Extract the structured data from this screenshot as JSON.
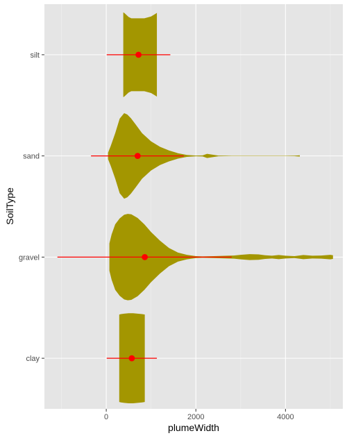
{
  "chart_data": {
    "type": "violin",
    "xlabel": "plumeWidth",
    "ylabel": "SoilType",
    "xlim": [
      -1380,
      5280
    ],
    "x_ticks": [
      0,
      2000,
      4000
    ],
    "x_tick_labels": [
      "0",
      "2000",
      "4000"
    ],
    "categories": [
      "clay",
      "gravel",
      "sand",
      "silt"
    ],
    "colors": {
      "panel": "#e5e5e5",
      "grid_major": "#ffffff",
      "grid_minor": "#f0f0f0",
      "violin_fill": "#a39600",
      "summary": "#ff0000"
    },
    "series": [
      {
        "category": "clay",
        "summary": {
          "mean": 570,
          "low": 10,
          "high": 1130
        },
        "density": [
          [
            290,
            0.96
          ],
          [
            330,
            0.97
          ],
          [
            400,
            0.98
          ],
          [
            500,
            0.99
          ],
          [
            600,
            0.99
          ],
          [
            700,
            0.98
          ],
          [
            800,
            0.97
          ],
          [
            860,
            0.96
          ]
        ]
      },
      {
        "category": "gravel",
        "summary": {
          "mean": 860,
          "low": -1090,
          "high": 2800
        },
        "density": [
          [
            70,
            0.3
          ],
          [
            120,
            0.5
          ],
          [
            200,
            0.72
          ],
          [
            300,
            0.85
          ],
          [
            400,
            0.93
          ],
          [
            480,
            0.95
          ],
          [
            560,
            0.94
          ],
          [
            700,
            0.86
          ],
          [
            850,
            0.72
          ],
          [
            1000,
            0.55
          ],
          [
            1200,
            0.36
          ],
          [
            1400,
            0.2
          ],
          [
            1600,
            0.1
          ],
          [
            1800,
            0.05
          ],
          [
            2000,
            0.02
          ],
          [
            2150,
            0.015
          ],
          [
            2400,
            0.02
          ],
          [
            2700,
            0.03
          ],
          [
            2850,
            0.035
          ],
          [
            3000,
            0.05
          ],
          [
            3200,
            0.065
          ],
          [
            3400,
            0.06
          ],
          [
            3550,
            0.04
          ],
          [
            3700,
            0.03
          ],
          [
            3850,
            0.045
          ],
          [
            4000,
            0.03
          ],
          [
            4200,
            0.02
          ],
          [
            4400,
            0.045
          ],
          [
            4600,
            0.03
          ],
          [
            4800,
            0.035
          ],
          [
            5000,
            0.05
          ],
          [
            5060,
            0.04
          ]
        ]
      },
      {
        "category": "sand",
        "summary": {
          "mean": 700,
          "low": -340,
          "high": 1730
        },
        "density": [
          [
            40,
            0.07
          ],
          [
            100,
            0.22
          ],
          [
            200,
            0.5
          ],
          [
            300,
            0.82
          ],
          [
            400,
            0.94
          ],
          [
            470,
            0.91
          ],
          [
            550,
            0.83
          ],
          [
            650,
            0.7
          ],
          [
            800,
            0.5
          ],
          [
            1000,
            0.32
          ],
          [
            1200,
            0.2
          ],
          [
            1400,
            0.12
          ],
          [
            1600,
            0.06
          ],
          [
            1800,
            0.02
          ],
          [
            2000,
            0.008
          ],
          [
            2150,
            0.012
          ],
          [
            2250,
            0.045
          ],
          [
            2350,
            0.03
          ],
          [
            2500,
            0.008
          ],
          [
            2800,
            0.004
          ],
          [
            3200,
            0.003
          ],
          [
            3600,
            0.003
          ],
          [
            4000,
            0.004
          ],
          [
            4200,
            0.006
          ],
          [
            4320,
            0.014
          ]
        ]
      },
      {
        "category": "silt",
        "summary": {
          "mean": 720,
          "low": 10,
          "high": 1430
        },
        "density": [
          [
            380,
            0.93
          ],
          [
            400,
            0.92
          ],
          [
            500,
            0.83
          ],
          [
            560,
            0.8
          ],
          [
            700,
            0.8
          ],
          [
            850,
            0.8
          ],
          [
            1000,
            0.84
          ],
          [
            1100,
            0.9
          ],
          [
            1130,
            0.92
          ]
        ]
      }
    ]
  }
}
